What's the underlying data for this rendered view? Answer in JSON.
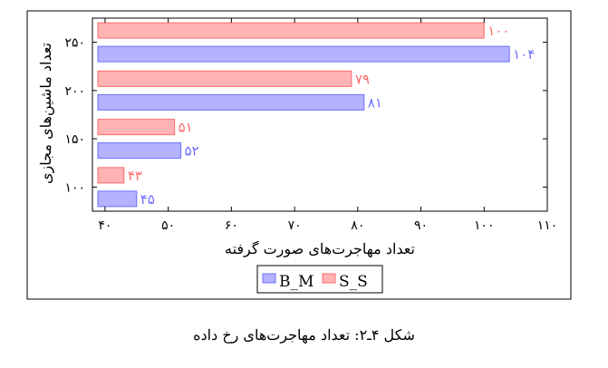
{
  "chart_data": {
    "type": "bar",
    "orientation": "horizontal",
    "categories": [
      "۱۰۰",
      "۱۵۰",
      "۲۰۰",
      "۲۵۰"
    ],
    "series": [
      {
        "name": "B_M",
        "values": [
          45,
          52,
          81,
          104
        ],
        "labels": [
          "۴۵",
          "۵۲",
          "۸۱",
          "۱۰۴"
        ],
        "color": "#6f6fff",
        "fill": "#b3b3ff"
      },
      {
        "name": "S_S",
        "values": [
          43,
          51,
          79,
          100
        ],
        "labels": [
          "۴۳",
          "۵۱",
          "۷۹",
          "۱۰۰"
        ],
        "color": "#ff6b6b",
        "fill": "#ffb3b3"
      }
    ],
    "xlim": [
      38,
      110
    ],
    "xticks": [
      40,
      50,
      60,
      70,
      80,
      90,
      100,
      110
    ],
    "xtick_labels": [
      "۴۰",
      "۵۰",
      "۶۰",
      "۷۰",
      "۸۰",
      "۹۰",
      "۱۰۰",
      "۱۱۰"
    ],
    "xlabel": "تعداد مهاجرت‌های صورت گرفته",
    "ylabel": "تعداد ماشین‌های مجازی",
    "legend_position": "bottom-center",
    "grid": false
  },
  "caption": "شکل ۴ـ۲: تعداد مهاجرت‌های رخ داده"
}
